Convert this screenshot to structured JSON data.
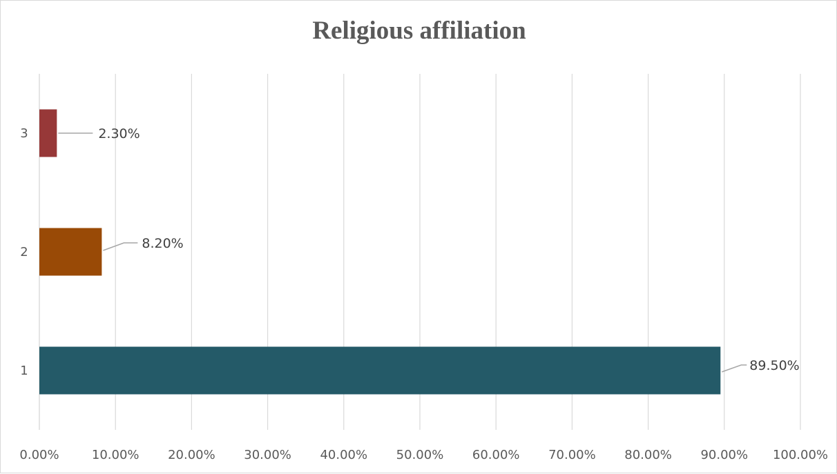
{
  "chart_data": {
    "type": "bar",
    "orientation": "horizontal",
    "title": "Religious affiliation",
    "xlabel": "",
    "ylabel": "",
    "categories": [
      "1",
      "2",
      "3"
    ],
    "values": [
      89.5,
      8.2,
      2.3
    ],
    "data_labels": [
      "89.50%",
      "8.20%",
      "2.30%"
    ],
    "colors": [
      "#245a68",
      "#994a06",
      "#973838"
    ],
    "xlim": [
      0,
      100
    ],
    "x_ticks": [
      0,
      10,
      20,
      30,
      40,
      50,
      60,
      70,
      80,
      90,
      100
    ],
    "x_tick_labels": [
      "0.00%",
      "10.00%",
      "20.00%",
      "30.00%",
      "40.00%",
      "50.00%",
      "60.00%",
      "70.00%",
      "80.00%",
      "90.00%",
      "100.00%"
    ],
    "grid": "vertical",
    "legend": "none"
  }
}
